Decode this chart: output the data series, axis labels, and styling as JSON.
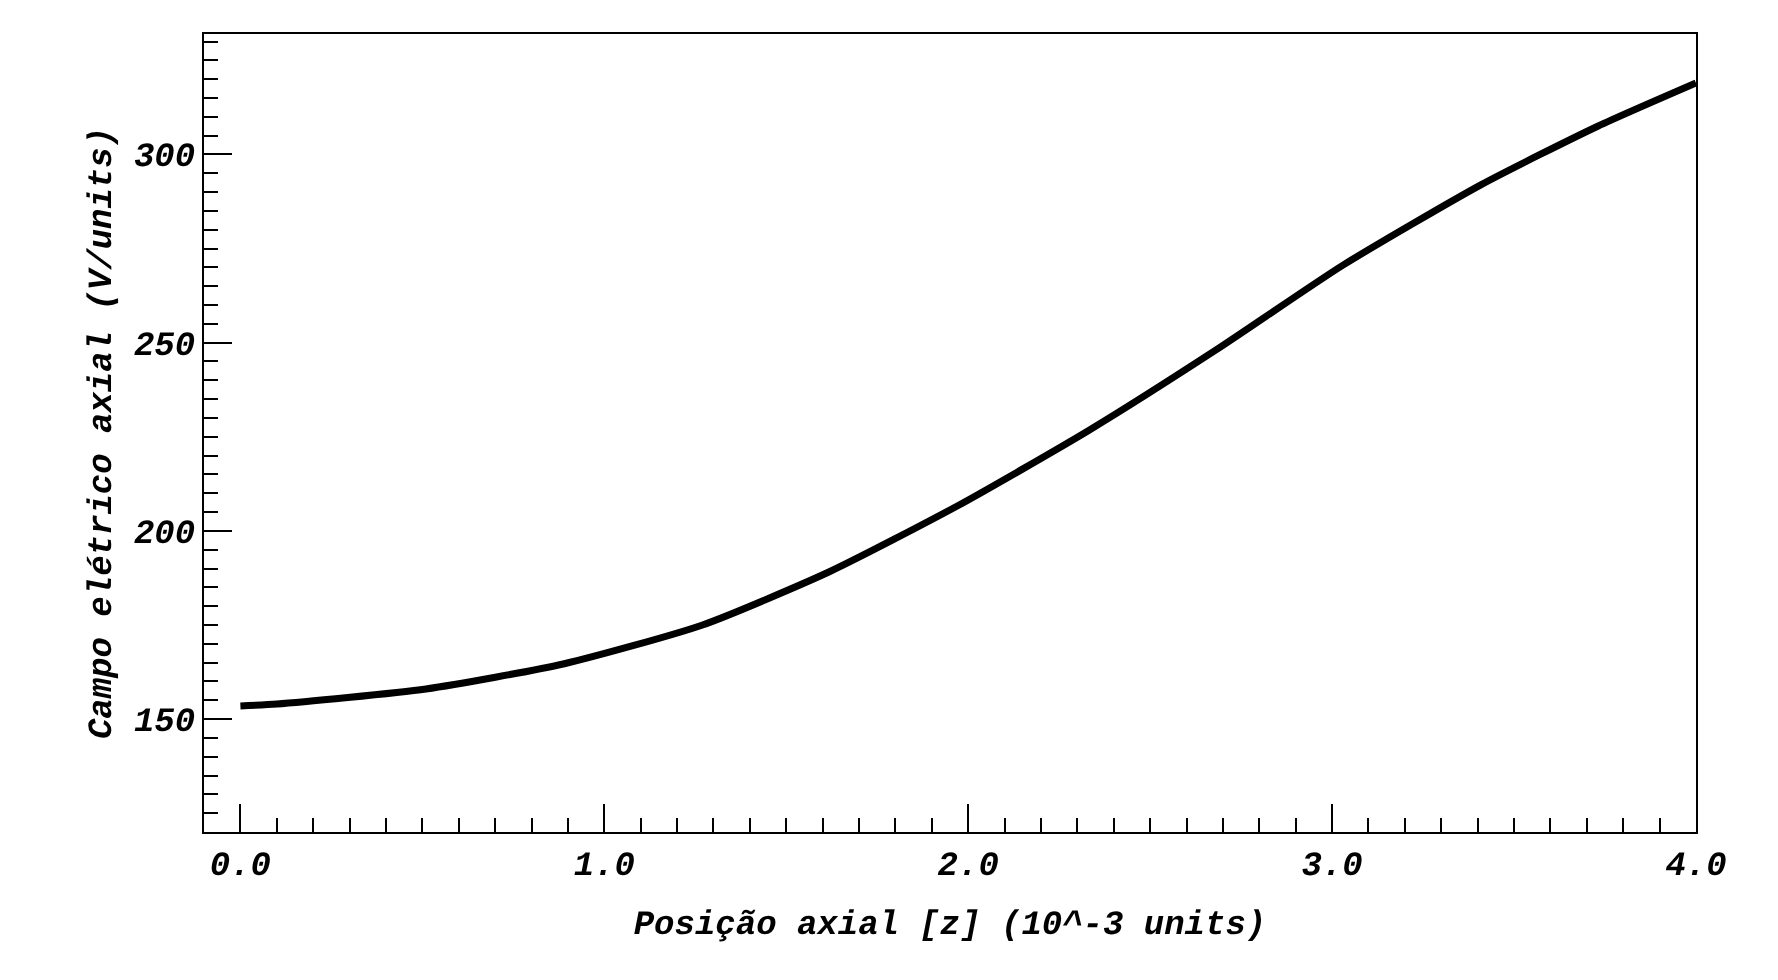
{
  "chart_data": {
    "type": "line",
    "xlabel": "Posição axial [z] (10^-3 units)",
    "ylabel": "Campo elétrico axial (V/units)",
    "x": [
      0.0,
      0.1,
      0.51,
      0.89,
      1.27,
      1.62,
      1.97,
      2.33,
      2.68,
      3.03,
      3.41,
      3.73,
      4.0
    ],
    "series": [
      {
        "color": "#000000",
        "values": [
          153.5,
          154,
          158,
          164.7,
          175,
          189.2,
          206.6,
          226.6,
          248,
          270.6,
          292,
          307.5,
          319
        ]
      }
    ],
    "xlim": [
      -0.1,
      4.0
    ],
    "ylim": [
      120,
      332
    ],
    "xticks": [
      {
        "value": 0,
        "label": "0.0"
      },
      {
        "value": 1,
        "label": "1.0"
      },
      {
        "value": 2,
        "label": "2.0"
      },
      {
        "value": 3,
        "label": "3.0"
      },
      {
        "value": 4,
        "label": "4.0"
      },
      {
        "value": 0.1,
        "label": null
      },
      {
        "value": 0.2,
        "label": null
      },
      {
        "value": 0.3,
        "label": null
      },
      {
        "value": 0.4,
        "label": null
      },
      {
        "value": 0.5,
        "label": null
      },
      {
        "value": 0.6,
        "label": null
      },
      {
        "value": 0.7,
        "label": null
      },
      {
        "value": 0.8,
        "label": null
      },
      {
        "value": 0.9,
        "label": null
      },
      {
        "value": 1.1,
        "label": null
      },
      {
        "value": 1.2,
        "label": null
      },
      {
        "value": 1.3,
        "label": null
      },
      {
        "value": 1.4,
        "label": null
      },
      {
        "value": 1.5,
        "label": null
      },
      {
        "value": 1.6,
        "label": null
      },
      {
        "value": 1.7,
        "label": null
      },
      {
        "value": 1.8,
        "label": null
      },
      {
        "value": 1.9,
        "label": null
      },
      {
        "value": 2.1,
        "label": null
      },
      {
        "value": 2.2,
        "label": null
      },
      {
        "value": 2.3,
        "label": null
      },
      {
        "value": 2.4,
        "label": null
      },
      {
        "value": 2.5,
        "label": null
      },
      {
        "value": 2.6,
        "label": null
      },
      {
        "value": 2.7,
        "label": null
      },
      {
        "value": 2.8,
        "label": null
      },
      {
        "value": 2.9,
        "label": null
      },
      {
        "value": 3.1,
        "label": null
      },
      {
        "value": 3.2,
        "label": null
      },
      {
        "value": 3.3,
        "label": null
      },
      {
        "value": 3.4,
        "label": null
      },
      {
        "value": 3.5,
        "label": null
      },
      {
        "value": 3.6,
        "label": null
      },
      {
        "value": 3.7,
        "label": null
      },
      {
        "value": 3.8,
        "label": null
      },
      {
        "value": 3.9,
        "label": null
      }
    ],
    "yticks": [
      150,
      200,
      250,
      300,
      {
        "value": 125,
        "label": null
      },
      {
        "value": 130,
        "label": null
      },
      {
        "value": 135,
        "label": null
      },
      {
        "value": 140,
        "label": null
      },
      {
        "value": 145,
        "label": null
      },
      {
        "value": 155,
        "label": null
      },
      {
        "value": 160,
        "label": null
      },
      {
        "value": 165,
        "label": null
      },
      {
        "value": 170,
        "label": null
      },
      {
        "value": 175,
        "label": null
      },
      {
        "value": 180,
        "label": null
      },
      {
        "value": 185,
        "label": null
      },
      {
        "value": 190,
        "label": null
      },
      {
        "value": 195,
        "label": null
      },
      {
        "value": 205,
        "label": null
      },
      {
        "value": 210,
        "label": null
      },
      {
        "value": 215,
        "label": null
      },
      {
        "value": 220,
        "label": null
      },
      {
        "value": 225,
        "label": null
      },
      {
        "value": 230,
        "label": null
      },
      {
        "value": 235,
        "label": null
      },
      {
        "value": 240,
        "label": null
      },
      {
        "value": 245,
        "label": null
      },
      {
        "value": 255,
        "label": null
      },
      {
        "value": 260,
        "label": null
      },
      {
        "value": 265,
        "label": null
      },
      {
        "value": 270,
        "label": null
      },
      {
        "value": 275,
        "label": null
      },
      {
        "value": 280,
        "label": null
      },
      {
        "value": 285,
        "label": null
      },
      {
        "value": 290,
        "label": null
      },
      {
        "value": 295,
        "label": null
      },
      {
        "value": 305,
        "label": null
      },
      {
        "value": 310,
        "label": null
      },
      {
        "value": 315,
        "label": null
      },
      {
        "value": 320,
        "label": null
      },
      {
        "value": 325,
        "label": null
      },
      {
        "value": 330,
        "label": null
      }
    ],
    "marker": "none",
    "line_style": "solid"
  }
}
